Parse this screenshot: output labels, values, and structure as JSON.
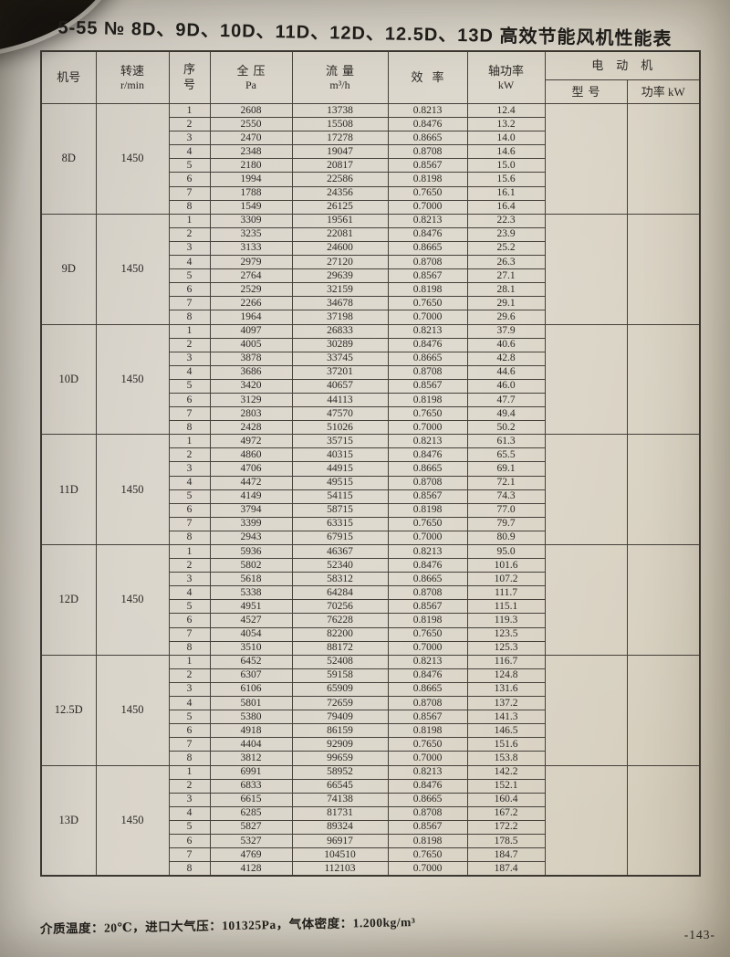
{
  "page": {
    "title": "5-55 № 8D、9D、10D、11D、12D、12.5D、13D 高效节能风机性能表",
    "footer_note": "介质温度：20℃，进口大气压：101325Pa，气体密度：1.200kg/m³",
    "page_number": "-143-"
  },
  "table": {
    "headers": {
      "machine_no": "机号",
      "speed_label": "转速",
      "speed_unit": "r/min",
      "seq": "序号",
      "pressure_label": "全压",
      "pressure_unit": "Pa",
      "flow_label": "流量",
      "flow_unit": "m³/h",
      "efficiency": "效率",
      "shaft_label": "轴功率",
      "shaft_unit": "kW",
      "motor": "电动机",
      "motor_model": "型号",
      "motor_power": "功率 kW"
    },
    "sections": [
      {
        "machine": "8D",
        "speed": "1450",
        "rows": [
          [
            "1",
            "2608",
            "13738",
            "0.8213",
            "12.4"
          ],
          [
            "2",
            "2550",
            "15508",
            "0.8476",
            "13.2"
          ],
          [
            "3",
            "2470",
            "17278",
            "0.8665",
            "14.0"
          ],
          [
            "4",
            "2348",
            "19047",
            "0.8708",
            "14.6"
          ],
          [
            "5",
            "2180",
            "20817",
            "0.8567",
            "15.0"
          ],
          [
            "6",
            "1994",
            "22586",
            "0.8198",
            "15.6"
          ],
          [
            "7",
            "1788",
            "24356",
            "0.7650",
            "16.1"
          ],
          [
            "8",
            "1549",
            "26125",
            "0.7000",
            "16.4"
          ]
        ]
      },
      {
        "machine": "9D",
        "speed": "1450",
        "rows": [
          [
            "1",
            "3309",
            "19561",
            "0.8213",
            "22.3"
          ],
          [
            "2",
            "3235",
            "22081",
            "0.8476",
            "23.9"
          ],
          [
            "3",
            "3133",
            "24600",
            "0.8665",
            "25.2"
          ],
          [
            "4",
            "2979",
            "27120",
            "0.8708",
            "26.3"
          ],
          [
            "5",
            "2764",
            "29639",
            "0.8567",
            "27.1"
          ],
          [
            "6",
            "2529",
            "32159",
            "0.8198",
            "28.1"
          ],
          [
            "7",
            "2266",
            "34678",
            "0.7650",
            "29.1"
          ],
          [
            "8",
            "1964",
            "37198",
            "0.7000",
            "29.6"
          ]
        ]
      },
      {
        "machine": "10D",
        "speed": "1450",
        "rows": [
          [
            "1",
            "4097",
            "26833",
            "0.8213",
            "37.9"
          ],
          [
            "2",
            "4005",
            "30289",
            "0.8476",
            "40.6"
          ],
          [
            "3",
            "3878",
            "33745",
            "0.8665",
            "42.8"
          ],
          [
            "4",
            "3686",
            "37201",
            "0.8708",
            "44.6"
          ],
          [
            "5",
            "3420",
            "40657",
            "0.8567",
            "46.0"
          ],
          [
            "6",
            "3129",
            "44113",
            "0.8198",
            "47.7"
          ],
          [
            "7",
            "2803",
            "47570",
            "0.7650",
            "49.4"
          ],
          [
            "8",
            "2428",
            "51026",
            "0.7000",
            "50.2"
          ]
        ]
      },
      {
        "machine": "11D",
        "speed": "1450",
        "rows": [
          [
            "1",
            "4972",
            "35715",
            "0.8213",
            "61.3"
          ],
          [
            "2",
            "4860",
            "40315",
            "0.8476",
            "65.5"
          ],
          [
            "3",
            "4706",
            "44915",
            "0.8665",
            "69.1"
          ],
          [
            "4",
            "4472",
            "49515",
            "0.8708",
            "72.1"
          ],
          [
            "5",
            "4149",
            "54115",
            "0.8567",
            "74.3"
          ],
          [
            "6",
            "3794",
            "58715",
            "0.8198",
            "77.0"
          ],
          [
            "7",
            "3399",
            "63315",
            "0.7650",
            "79.7"
          ],
          [
            "8",
            "2943",
            "67915",
            "0.7000",
            "80.9"
          ]
        ]
      },
      {
        "machine": "12D",
        "speed": "1450",
        "rows": [
          [
            "1",
            "5936",
            "46367",
            "0.8213",
            "95.0"
          ],
          [
            "2",
            "5802",
            "52340",
            "0.8476",
            "101.6"
          ],
          [
            "3",
            "5618",
            "58312",
            "0.8665",
            "107.2"
          ],
          [
            "4",
            "5338",
            "64284",
            "0.8708",
            "111.7"
          ],
          [
            "5",
            "4951",
            "70256",
            "0.8567",
            "115.1"
          ],
          [
            "6",
            "4527",
            "76228",
            "0.8198",
            "119.3"
          ],
          [
            "7",
            "4054",
            "82200",
            "0.7650",
            "123.5"
          ],
          [
            "8",
            "3510",
            "88172",
            "0.7000",
            "125.3"
          ]
        ]
      },
      {
        "machine": "12.5D",
        "speed": "1450",
        "rows": [
          [
            "1",
            "6452",
            "52408",
            "0.8213",
            "116.7"
          ],
          [
            "2",
            "6307",
            "59158",
            "0.8476",
            "124.8"
          ],
          [
            "3",
            "6106",
            "65909",
            "0.8665",
            "131.6"
          ],
          [
            "4",
            "5801",
            "72659",
            "0.8708",
            "137.2"
          ],
          [
            "5",
            "5380",
            "79409",
            "0.8567",
            "141.3"
          ],
          [
            "6",
            "4918",
            "86159",
            "0.8198",
            "146.5"
          ],
          [
            "7",
            "4404",
            "92909",
            "0.7650",
            "151.6"
          ],
          [
            "8",
            "3812",
            "99659",
            "0.7000",
            "153.8"
          ]
        ]
      },
      {
        "machine": "13D",
        "speed": "1450",
        "rows": [
          [
            "1",
            "6991",
            "58952",
            "0.8213",
            "142.2"
          ],
          [
            "2",
            "6833",
            "66545",
            "0.8476",
            "152.1"
          ],
          [
            "3",
            "6615",
            "74138",
            "0.8665",
            "160.4"
          ],
          [
            "4",
            "6285",
            "81731",
            "0.8708",
            "167.2"
          ],
          [
            "5",
            "5827",
            "89324",
            "0.8567",
            "172.2"
          ],
          [
            "6",
            "5327",
            "96917",
            "0.8198",
            "178.5"
          ],
          [
            "7",
            "4769",
            "104510",
            "0.7650",
            "184.7"
          ],
          [
            "8",
            "4128",
            "112103",
            "0.7000",
            "187.4"
          ]
        ]
      }
    ]
  }
}
